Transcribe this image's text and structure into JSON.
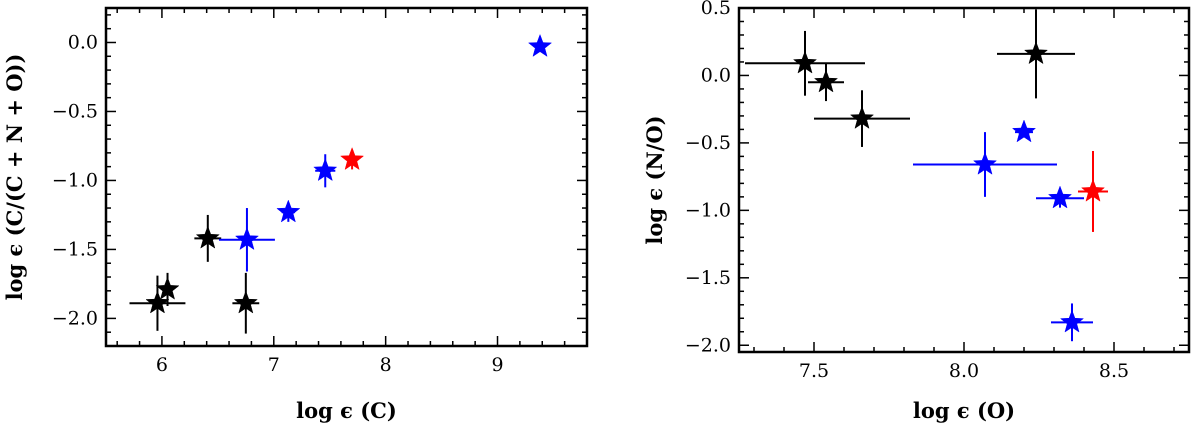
{
  "chart_data": [
    {
      "type": "scatter",
      "xlabel": "log ϵ (C)",
      "ylabel": "log ϵ (C/(C + N + O))",
      "xlim": [
        5.5,
        9.8
      ],
      "ylim": [
        -2.2,
        0.25
      ],
      "xticks": [
        6,
        7,
        8,
        9
      ],
      "xtick_labels": [
        "6",
        "7",
        "8",
        "9"
      ],
      "yticks": [
        0.0,
        -0.5,
        -1.0,
        -1.5,
        -2.0
      ],
      "ytick_labels": [
        "0.0",
        "−0.5",
        "−1.0",
        "−1.5",
        "−2.0"
      ],
      "grid": false,
      "series": [
        {
          "color": "#000000",
          "marker": "star",
          "points": [
            {
              "x": 5.96,
              "y": -1.89,
              "xerr": 0.25,
              "yerr": 0.2
            },
            {
              "x": 6.05,
              "y": -1.79,
              "xerr": 0.05,
              "yerr": 0.12
            },
            {
              "x": 6.41,
              "y": -1.42,
              "xerr": 0.12,
              "yerr": 0.17
            },
            {
              "x": 6.75,
              "y": -1.89,
              "xerr": 0.12,
              "yerr": 0.22
            }
          ]
        },
        {
          "color": "#0000ff",
          "marker": "star",
          "points": [
            {
              "x": 6.76,
              "y": -1.43,
              "xerr": 0.25,
              "yerr": 0.23
            },
            {
              "x": 7.13,
              "y": -1.23,
              "xerr": 0.06,
              "yerr": 0.07
            },
            {
              "x": 7.46,
              "y": -0.93,
              "xerr": 0.09,
              "yerr": 0.12
            },
            {
              "x": 9.38,
              "y": -0.03,
              "xerr": 0.0,
              "yerr": 0.0
            }
          ]
        },
        {
          "color": "#ff0000",
          "marker": "star",
          "points": [
            {
              "x": 7.7,
              "y": -0.85,
              "xerr": 0.04,
              "yerr": 0.07
            }
          ]
        }
      ]
    },
    {
      "type": "scatter",
      "xlabel": "log ϵ (O)",
      "ylabel": "log ϵ (N/O)",
      "xlim": [
        7.25,
        8.75
      ],
      "ylim": [
        -2.05,
        0.5
      ],
      "xticks": [
        7.5,
        8.0,
        8.5
      ],
      "xtick_labels": [
        "7.5",
        "8.0",
        "8.5"
      ],
      "yticks": [
        0.5,
        0.0,
        -0.5,
        -1.0,
        -1.5,
        -2.0
      ],
      "ytick_labels": [
        "0.5",
        "0.0",
        "−0.5",
        "−1.0",
        "−1.5",
        "−2.0"
      ],
      "grid": false,
      "series": [
        {
          "color": "#000000",
          "marker": "star",
          "points": [
            {
              "x": 7.47,
              "y": 0.09,
              "xerr": 0.2,
              "yerr": 0.24
            },
            {
              "x": 7.54,
              "y": -0.05,
              "xerr": 0.06,
              "yerr": 0.14
            },
            {
              "x": 7.66,
              "y": -0.32,
              "xerr": 0.16,
              "yerr": 0.21
            },
            {
              "x": 8.24,
              "y": 0.16,
              "xerr": 0.13,
              "yerr": 0.33
            }
          ]
        },
        {
          "color": "#0000ff",
          "marker": "star",
          "points": [
            {
              "x": 8.07,
              "y": -0.66,
              "xerr": 0.24,
              "yerr": 0.24
            },
            {
              "x": 8.2,
              "y": -0.42,
              "xerr": 0.03,
              "yerr": 0.04
            },
            {
              "x": 8.32,
              "y": -0.91,
              "xerr": 0.08,
              "yerr": 0.07
            },
            {
              "x": 8.36,
              "y": -1.83,
              "xerr": 0.07,
              "yerr": 0.14
            }
          ]
        },
        {
          "color": "#ff0000",
          "marker": "star",
          "points": [
            {
              "x": 8.43,
              "y": -0.86,
              "xerr": 0.05,
              "yerr": 0.3
            }
          ]
        }
      ]
    }
  ]
}
